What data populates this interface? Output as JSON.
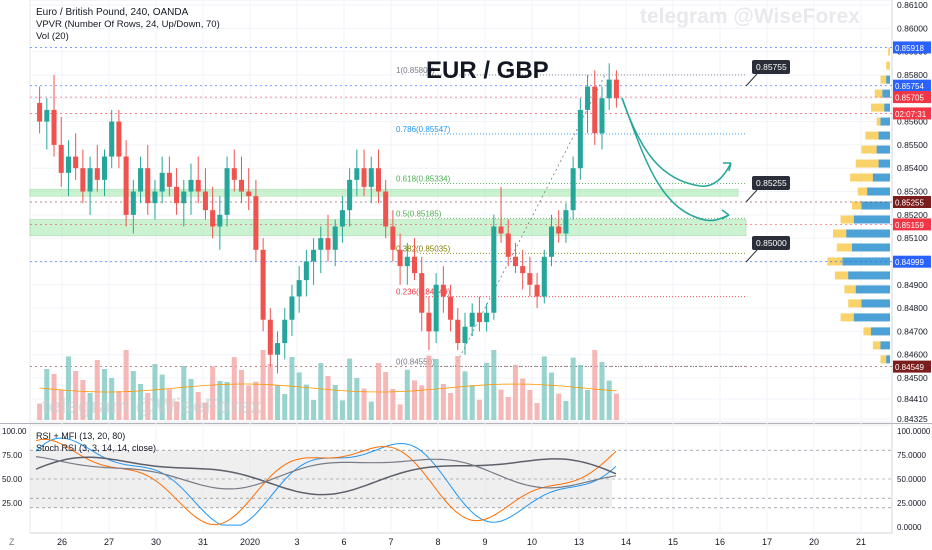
{
  "header": {
    "symbol_line": "Euro / British Pound, 240, OANDA",
    "vpvr_line": "VPVR (Number Of Rows, 24, Up/Down, 70)",
    "vol_line": "Vol (20)"
  },
  "watermark": "telegram @WiseForex",
  "price_panel": {
    "title": "EUR / GBP",
    "ylim": [
      0.8432,
      0.861
    ],
    "y_ticks": [
      "0.86100",
      "0.86000",
      "0.85900",
      "0.85800",
      "0.85700",
      "0.85600",
      "0.85500",
      "0.85400",
      "0.85300",
      "0.85200",
      "0.85100",
      "0.85000",
      "0.84900",
      "0.84800",
      "0.84700",
      "0.84600",
      "0.84500",
      "0.84410",
      "0.84325"
    ],
    "price_tags": [
      {
        "value": 0.85918,
        "text": "0.85918",
        "color": "#2962ff"
      },
      {
        "value": 0.85754,
        "text": "0.85754",
        "color": "#2962ff"
      },
      {
        "value": 0.85705,
        "text": "0.85705",
        "color": "#f23645"
      },
      {
        "value": 0.85635,
        "text": "02:07:31",
        "color": "#f23645"
      },
      {
        "value": 0.85255,
        "text": "0.85255",
        "color": "#7b1d1d"
      },
      {
        "value": 0.85159,
        "text": "0.85159",
        "color": "#f23645"
      },
      {
        "value": 0.84999,
        "text": "0.84999",
        "color": "#2962ff"
      },
      {
        "value": 0.84549,
        "text": "0.84549",
        "color": "#7b1d1d"
      }
    ],
    "fib_levels": [
      {
        "ratio": "1",
        "label": "1(0.85800)",
        "value": 0.858,
        "color": "#787b86"
      },
      {
        "ratio": "0.786",
        "label": "0.786(0.85547)",
        "value": 0.85547,
        "color": "#2196f3"
      },
      {
        "ratio": "0.618",
        "label": "0.618(0.85334)",
        "value": 0.85334,
        "color": "#4caf50"
      },
      {
        "ratio": "0.5",
        "label": "0.5(0.85185)",
        "value": 0.85185,
        "color": "#4caf50"
      },
      {
        "ratio": "0.382",
        "label": "0.382(0.85035)",
        "value": 0.85035,
        "color": "#808000"
      },
      {
        "ratio": "0.236",
        "label": "0.236(0.84849)",
        "value": 0.84849,
        "color": "#f23645"
      },
      {
        "ratio": "0",
        "label": "0(0.84550)",
        "value": 0.8455,
        "color": "#787b86"
      }
    ],
    "callouts": [
      "0.85755",
      "0.85255",
      "0.85000"
    ],
    "zones": [
      {
        "low": 0.8528,
        "high": 0.8531
      },
      {
        "low": 0.8511,
        "high": 0.8518
      }
    ]
  },
  "x_axis": {
    "labels": [
      "26",
      "27",
      "30",
      "31",
      "2020",
      "3",
      "6",
      "7",
      "8",
      "9",
      "10",
      "13",
      "14",
      "15",
      "16",
      "17",
      "20",
      "21",
      "22"
    ]
  },
  "osc_panel": {
    "label1": "RSI + MFI (13, 20, 80)",
    "label2": "Stoch RSI (3, 3, 14, 14, close)",
    "left_ticks": [
      "100.00",
      "75.00",
      "50.00",
      "25.00"
    ],
    "right_ticks": [
      "100.0000",
      "75.0000",
      "50.0000",
      "25.0000",
      "0.0000"
    ]
  },
  "corner_label": "Z",
  "colors": {
    "bull": "#26a69a",
    "bear": "#ef5350",
    "zone": "#8fe69a",
    "accent": "#2962ff"
  },
  "chart_data": {
    "type": "candlestick",
    "title": "EUR / GBP",
    "ylim": [
      0.8432,
      0.861
    ],
    "candles": [
      [
        0.8568,
        0.8575,
        0.8555,
        0.856
      ],
      [
        0.856,
        0.857,
        0.8548,
        0.8565
      ],
      [
        0.8565,
        0.858,
        0.8545,
        0.855
      ],
      [
        0.855,
        0.8562,
        0.8532,
        0.8538
      ],
      [
        0.8538,
        0.8552,
        0.8528,
        0.8545
      ],
      [
        0.8545,
        0.8555,
        0.8535,
        0.854
      ],
      [
        0.854,
        0.8548,
        0.8525,
        0.853
      ],
      [
        0.853,
        0.8545,
        0.852,
        0.854
      ],
      [
        0.854,
        0.855,
        0.853,
        0.8535
      ],
      [
        0.8535,
        0.8548,
        0.8528,
        0.8545
      ],
      [
        0.8545,
        0.8565,
        0.854,
        0.856
      ],
      [
        0.856,
        0.8565,
        0.854,
        0.8545
      ],
      [
        0.8545,
        0.8552,
        0.8515,
        0.852
      ],
      [
        0.852,
        0.8535,
        0.8512,
        0.853
      ],
      [
        0.853,
        0.8545,
        0.8525,
        0.854
      ],
      [
        0.854,
        0.855,
        0.852,
        0.8525
      ],
      [
        0.8525,
        0.8535,
        0.8518,
        0.853
      ],
      [
        0.853,
        0.8545,
        0.8525,
        0.8538
      ],
      [
        0.8538,
        0.8545,
        0.8528,
        0.8532
      ],
      [
        0.8532,
        0.854,
        0.852,
        0.8525
      ],
      [
        0.8525,
        0.8535,
        0.8515,
        0.853
      ],
      [
        0.853,
        0.8542,
        0.852,
        0.8535
      ],
      [
        0.8535,
        0.8545,
        0.8525,
        0.853
      ],
      [
        0.853,
        0.854,
        0.8518,
        0.8522
      ],
      [
        0.8522,
        0.8532,
        0.851,
        0.8515
      ],
      [
        0.8515,
        0.8528,
        0.8505,
        0.852
      ],
      [
        0.852,
        0.8545,
        0.8515,
        0.854
      ],
      [
        0.854,
        0.8548,
        0.853,
        0.8535
      ],
      [
        0.8535,
        0.8545,
        0.8525,
        0.853
      ],
      [
        0.853,
        0.854,
        0.8522,
        0.8528
      ],
      [
        0.8528,
        0.8535,
        0.85,
        0.8505
      ],
      [
        0.8505,
        0.851,
        0.847,
        0.8475
      ],
      [
        0.8475,
        0.848,
        0.8455,
        0.846
      ],
      [
        0.846,
        0.847,
        0.8452,
        0.8465
      ],
      [
        0.8465,
        0.848,
        0.8458,
        0.8475
      ],
      [
        0.8475,
        0.849,
        0.8468,
        0.8485
      ],
      [
        0.8485,
        0.8498,
        0.8478,
        0.8492
      ],
      [
        0.8492,
        0.8505,
        0.8485,
        0.85
      ],
      [
        0.85,
        0.851,
        0.849,
        0.8505
      ],
      [
        0.8505,
        0.8515,
        0.8495,
        0.851
      ],
      [
        0.851,
        0.852,
        0.85,
        0.8505
      ],
      [
        0.8505,
        0.8518,
        0.8498,
        0.8515
      ],
      [
        0.8515,
        0.8528,
        0.8508,
        0.8522
      ],
      [
        0.8522,
        0.854,
        0.8515,
        0.8535
      ],
      [
        0.8535,
        0.8548,
        0.8528,
        0.854
      ],
      [
        0.854,
        0.8548,
        0.8528,
        0.8532
      ],
      [
        0.8532,
        0.8545,
        0.8525,
        0.854
      ],
      [
        0.854,
        0.8548,
        0.8525,
        0.853
      ],
      [
        0.853,
        0.8535,
        0.851,
        0.8515
      ],
      [
        0.8515,
        0.8522,
        0.85,
        0.8505
      ],
      [
        0.8505,
        0.8512,
        0.849,
        0.8498
      ],
      [
        0.8498,
        0.8508,
        0.849,
        0.8502
      ],
      [
        0.8502,
        0.851,
        0.8492,
        0.8495
      ],
      [
        0.8495,
        0.8502,
        0.847,
        0.8478
      ],
      [
        0.8478,
        0.8485,
        0.8462,
        0.847
      ],
      [
        0.847,
        0.8495,
        0.8465,
        0.849
      ],
      [
        0.849,
        0.8498,
        0.8478,
        0.8485
      ],
      [
        0.8485,
        0.849,
        0.847,
        0.8475
      ],
      [
        0.8475,
        0.848,
        0.8462,
        0.8465
      ],
      [
        0.8465,
        0.8478,
        0.846,
        0.8472
      ],
      [
        0.8472,
        0.8482,
        0.8468,
        0.8478
      ],
      [
        0.8478,
        0.8485,
        0.847,
        0.8474
      ],
      [
        0.8474,
        0.8482,
        0.847,
        0.8478
      ],
      [
        0.8478,
        0.852,
        0.8475,
        0.8515
      ],
      [
        0.8515,
        0.8532,
        0.8508,
        0.8512
      ],
      [
        0.8512,
        0.8518,
        0.8498,
        0.8502
      ],
      [
        0.8502,
        0.8508,
        0.8495,
        0.8498
      ],
      [
        0.8498,
        0.8505,
        0.8488,
        0.8495
      ],
      [
        0.8495,
        0.8502,
        0.8485,
        0.849
      ],
      [
        0.849,
        0.8495,
        0.848,
        0.8485
      ],
      [
        0.8485,
        0.8505,
        0.8482,
        0.8502
      ],
      [
        0.8502,
        0.852,
        0.8498,
        0.8515
      ],
      [
        0.8515,
        0.8522,
        0.8508,
        0.8512
      ],
      [
        0.8512,
        0.8525,
        0.8508,
        0.8522
      ],
      [
        0.8522,
        0.8545,
        0.8518,
        0.854
      ],
      [
        0.854,
        0.857,
        0.8535,
        0.8565
      ],
      [
        0.8565,
        0.858,
        0.8555,
        0.8575
      ],
      [
        0.8575,
        0.8582,
        0.855,
        0.8555
      ],
      [
        0.8555,
        0.8575,
        0.8548,
        0.857
      ],
      [
        0.857,
        0.8585,
        0.8565,
        0.8578
      ],
      [
        0.8578,
        0.8582,
        0.8566,
        0.857
      ]
    ],
    "projection": [
      "up to 0.8545 after pullback",
      "down to 0.8525 then bounce"
    ]
  }
}
